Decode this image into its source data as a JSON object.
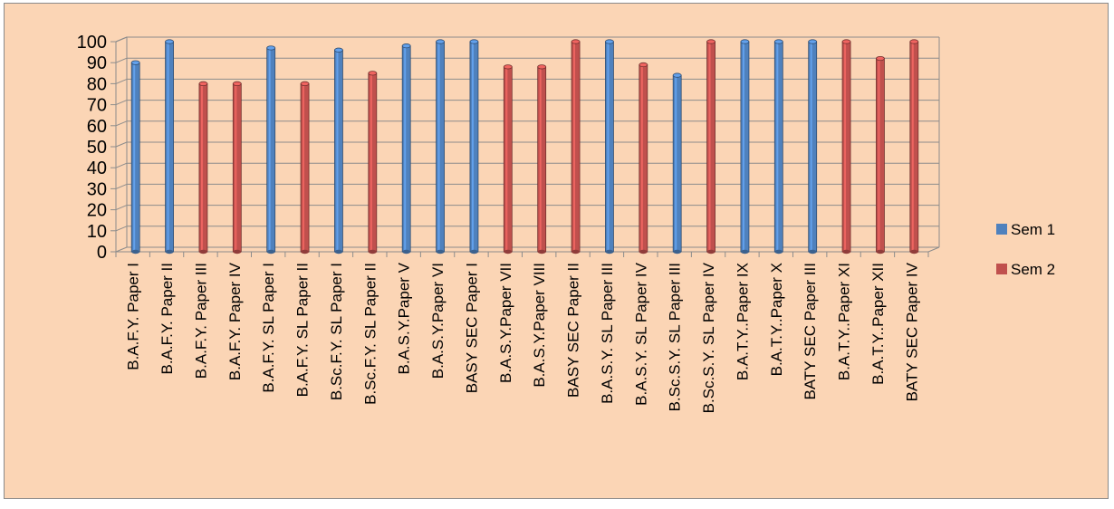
{
  "chart_data": {
    "type": "bar",
    "style": "3d-clustered-column",
    "categories": [
      "B.A.F.Y. Paper I",
      "B.A.F.Y. Paper II",
      "B.A.F.Y. Paper III",
      "B.A.F.Y. Paper IV",
      "B.A.F.Y.  SL Paper I",
      "B.A.F.Y.  SL Paper II",
      "B.Sc.F.Y.  SL Paper I",
      "B.Sc.F.Y.  SL Paper II",
      "B.A.S.Y.Paper V",
      "B.A.S.Y.Paper  VI",
      "BASY SEC Paper I",
      "B.A.S.Y.Paper  VII",
      "B.A.S.Y.Paper  VIII",
      "BASY SEC Paper II",
      "B.A.S.Y.  SL Paper III",
      "B.A.S.Y.  SL Paper IV",
      "B.Sc.S.Y.  SL Paper III",
      "B.Sc.S.Y.  SL Paper IV",
      "B.A.T.Y..Paper IX",
      "B.A.T.Y..Paper X",
      "BATY SEC Paper III",
      "B.A.T.Y..Paper XI",
      "B.A.T.Y..Paper XII",
      "BATY SEC Paper IV"
    ],
    "series": [
      {
        "name": "Sem 1",
        "color": "#4f81bd",
        "values": [
          90,
          100,
          null,
          null,
          97,
          null,
          96,
          null,
          98,
          100,
          100,
          null,
          null,
          null,
          100,
          null,
          84,
          null,
          100,
          100,
          100,
          null,
          null,
          null
        ]
      },
      {
        "name": "Sem 2",
        "color": "#c0504d",
        "values": [
          null,
          null,
          80,
          80,
          null,
          80,
          null,
          85,
          null,
          null,
          null,
          88,
          88,
          100,
          null,
          89,
          null,
          100,
          null,
          null,
          null,
          100,
          92,
          100
        ]
      }
    ],
    "y_ticks": [
      "0",
      "10",
      "20",
      "30",
      "40",
      "50",
      "60",
      "70",
      "80",
      "90",
      "100"
    ],
    "ylim": [
      0,
      100
    ],
    "grid": true,
    "legend_position": "right",
    "background_color": "#fbd5b5"
  }
}
